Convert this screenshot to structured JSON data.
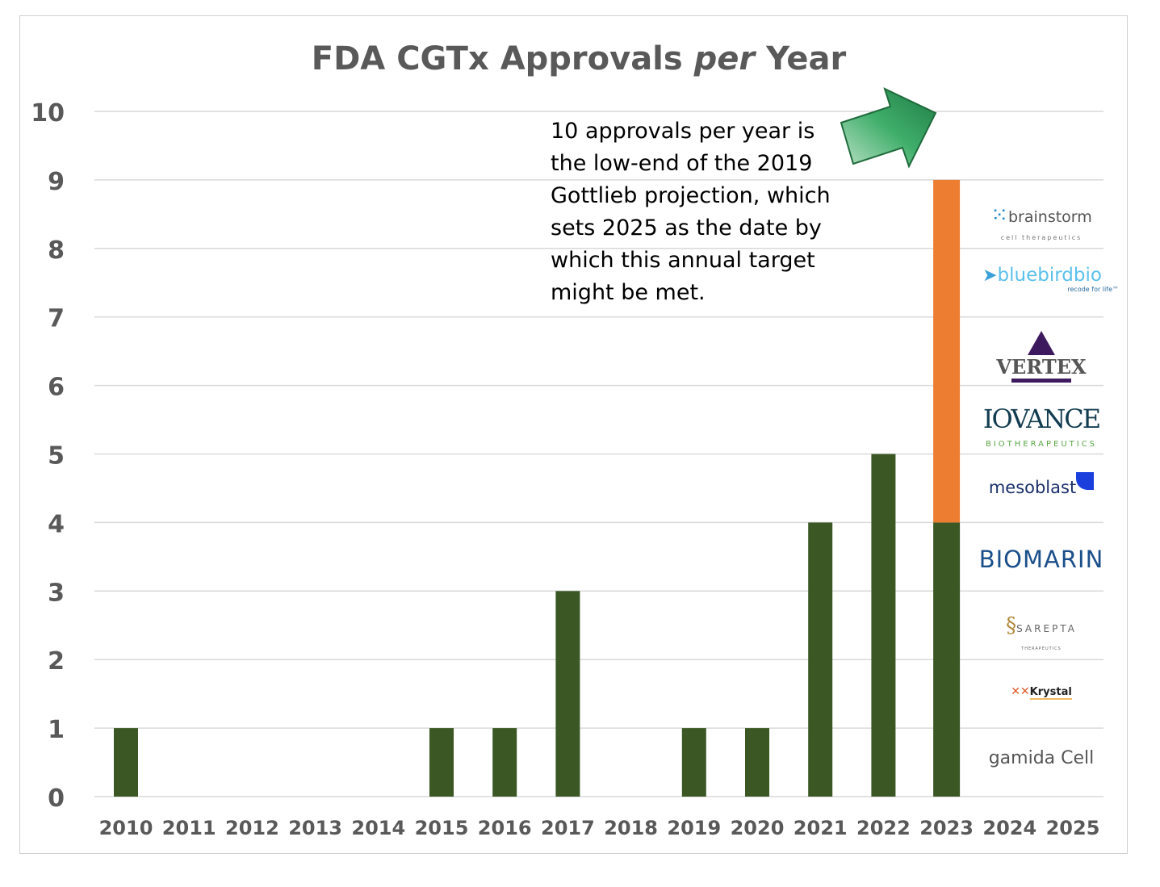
{
  "chart_data": {
    "type": "bar",
    "stacked": true,
    "title": "FDA CGTx Approvals per Year",
    "title_parts": [
      "FDA CGTx Approvals ",
      "per",
      " Year"
    ],
    "xlabel": "",
    "ylabel": "",
    "categories": [
      "2010",
      "2011",
      "2012",
      "2013",
      "2014",
      "2015",
      "2016",
      "2017",
      "2018",
      "2019",
      "2020",
      "2021",
      "2022",
      "2023",
      "2024",
      "2025"
    ],
    "series": [
      {
        "color": "#3a5724",
        "values": [
          1,
          0,
          0,
          0,
          0,
          1,
          1,
          3,
          0,
          1,
          1,
          4,
          5,
          4,
          0,
          0
        ]
      },
      {
        "color": "#ed7d31",
        "values": [
          0,
          0,
          0,
          0,
          0,
          0,
          0,
          0,
          0,
          0,
          0,
          0,
          0,
          5,
          0,
          0
        ]
      }
    ],
    "ylim": [
      0,
      10
    ],
    "yticks": [
      0,
      1,
      2,
      3,
      4,
      5,
      6,
      7,
      8,
      9,
      10
    ],
    "grid": true,
    "legend": "none",
    "annotation": "10 approvals per year is the low-end of the 2019 Gottlieb projection, which sets 2025 as the date by which this annual target might be met.",
    "arrow_icon": "block-arrow-up-right",
    "arrow_color": "#2e8b57"
  },
  "logos": [
    {
      "name": "brainstorm",
      "text": "brainstorm",
      "sub": "cell therapeutics"
    },
    {
      "name": "bluebirdbio",
      "text": "bluebirdbio",
      "sub": "recode for life™"
    },
    {
      "name": "vertex",
      "text": "VERTEX"
    },
    {
      "name": "iovance",
      "text": "IOVANCE",
      "sub": "BIOTHERAPEUTICS"
    },
    {
      "name": "mesoblast",
      "text": "mesoblast"
    },
    {
      "name": "biomarin",
      "text": "BIOMARIN"
    },
    {
      "name": "sarepta",
      "text": "SAREPTA",
      "sub": "THERAPEUTICS"
    },
    {
      "name": "krystal",
      "text": "Krystal"
    },
    {
      "name": "gamida-cell",
      "text": "gamida Cell"
    }
  ]
}
